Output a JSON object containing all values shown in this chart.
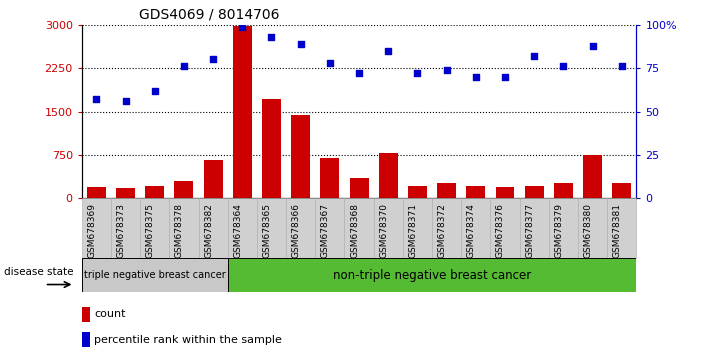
{
  "title": "GDS4069 / 8014706",
  "samples": [
    "GSM678369",
    "GSM678373",
    "GSM678375",
    "GSM678378",
    "GSM678382",
    "GSM678364",
    "GSM678365",
    "GSM678366",
    "GSM678367",
    "GSM678368",
    "GSM678370",
    "GSM678371",
    "GSM678372",
    "GSM678374",
    "GSM678376",
    "GSM678377",
    "GSM678379",
    "GSM678380",
    "GSM678381"
  ],
  "counts": [
    200,
    175,
    220,
    290,
    660,
    2980,
    1720,
    1440,
    700,
    350,
    780,
    220,
    260,
    215,
    200,
    220,
    270,
    740,
    260
  ],
  "percentiles": [
    57,
    56,
    62,
    76,
    80,
    99,
    93,
    89,
    78,
    72,
    85,
    72,
    74,
    70,
    70,
    82,
    76,
    88,
    76
  ],
  "group1_label": "triple negative breast cancer",
  "group2_label": "non-triple negative breast cancer",
  "group1_count": 5,
  "group2_count": 14,
  "bar_color": "#cc0000",
  "dot_color": "#0000cc",
  "left_axis_color": "#cc0000",
  "right_axis_color": "#0000cc",
  "ylim_left": [
    0,
    3000
  ],
  "yticks_left": [
    0,
    750,
    1500,
    2250,
    3000
  ],
  "ytick_labels_left": [
    "0",
    "750",
    "1500",
    "2250",
    "3000"
  ],
  "yticks_right": [
    0,
    25,
    50,
    75,
    100
  ],
  "ytick_labels_right": [
    "0",
    "25",
    "50",
    "75",
    "100%"
  ],
  "legend_count_label": "count",
  "legend_pct_label": "percentile rank within the sample",
  "group1_bg": "#c8c8c8",
  "group2_bg": "#55bb33",
  "disease_state_label": "disease state"
}
